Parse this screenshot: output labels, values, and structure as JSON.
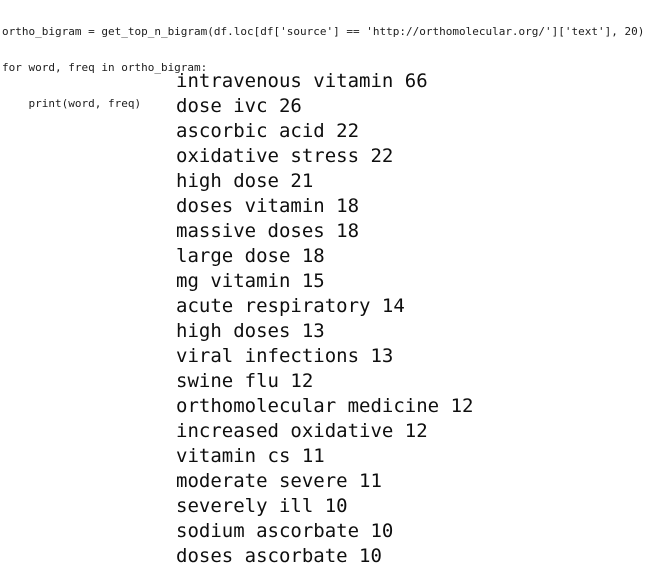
{
  "code": {
    "lines": [
      "ortho_bigram = get_top_n_bigram(df.loc[df['source'] == 'http://orthomolecular.org/']['text'], 20)",
      "for word, freq in ortho_bigram:",
      "    print(word, freq)"
    ]
  },
  "output": {
    "bigrams": [
      {
        "word": "intravenous vitamin",
        "freq": 66
      },
      {
        "word": "dose ivc",
        "freq": 26
      },
      {
        "word": "ascorbic acid",
        "freq": 22
      },
      {
        "word": "oxidative stress",
        "freq": 22
      },
      {
        "word": "high dose",
        "freq": 21
      },
      {
        "word": "doses vitamin",
        "freq": 18
      },
      {
        "word": "massive doses",
        "freq": 18
      },
      {
        "word": "large dose",
        "freq": 18
      },
      {
        "word": "mg vitamin",
        "freq": 15
      },
      {
        "word": "acute respiratory",
        "freq": 14
      },
      {
        "word": "high doses",
        "freq": 13
      },
      {
        "word": "viral infections",
        "freq": 13
      },
      {
        "word": "swine flu",
        "freq": 12
      },
      {
        "word": "orthomolecular medicine",
        "freq": 12
      },
      {
        "word": "increased oxidative",
        "freq": 12
      },
      {
        "word": "vitamin cs",
        "freq": 11
      },
      {
        "word": "moderate severe",
        "freq": 11
      },
      {
        "word": "severely ill",
        "freq": 10
      },
      {
        "word": "sodium ascorbate",
        "freq": 10
      },
      {
        "word": "doses ascorbate",
        "freq": 10
      }
    ]
  },
  "colors": {
    "background": "#ffffff",
    "code_text": "#1c1c1c",
    "output_text": "#0e0e0e"
  }
}
